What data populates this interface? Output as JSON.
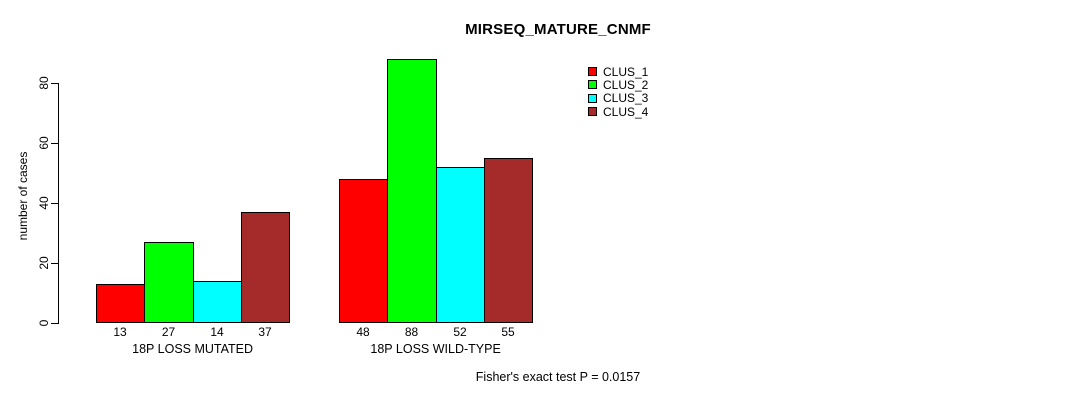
{
  "title": "MIRSEQ_MATURE_CNMF",
  "ylabel": "number of cases",
  "footer": "Fisher's exact test P = 0.0157",
  "chart_data": {
    "type": "bar",
    "title": "MIRSEQ_MATURE_CNMF",
    "xlabel": "",
    "ylabel": "number of cases",
    "categories": [
      "18P LOSS MUTATED",
      "18P LOSS WILD-TYPE"
    ],
    "series": [
      {
        "name": "CLUS_1",
        "color": "#FF0000",
        "values": [
          13,
          48
        ]
      },
      {
        "name": "CLUS_2",
        "color": "#00FF00",
        "values": [
          27,
          88
        ]
      },
      {
        "name": "CLUS_3",
        "color": "#00FFFF",
        "values": [
          14,
          52
        ]
      },
      {
        "name": "CLUS_4",
        "color": "#A52A2A",
        "values": [
          37,
          55
        ]
      }
    ],
    "bar_value_labels": [
      [
        13,
        27,
        14,
        37
      ],
      [
        48,
        88,
        52,
        55
      ]
    ],
    "yticks": [
      0,
      20,
      40,
      60,
      80
    ],
    "ylim": [
      0,
      88
    ],
    "grid": false,
    "legend_position": "top-right",
    "annotation": "Fisher's exact test P = 0.0157",
    "bar_border_color": "#000000",
    "text_color": "#000000"
  }
}
